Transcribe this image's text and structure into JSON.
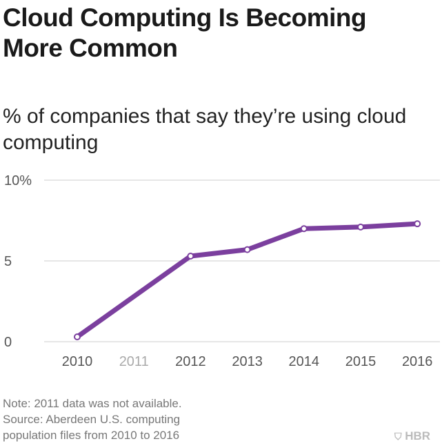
{
  "title": "Cloud Computing Is Becoming More Common",
  "subtitle": "% of companies that say they’re using cloud computing",
  "note": "Note: 2011 data was not available.",
  "source": "Source: Aberdeen U.S. computing population files from 2010 to 2016",
  "logo": "HBR",
  "chart_data": {
    "type": "line",
    "categories": [
      "2010",
      "2011",
      "2012",
      "2013",
      "2014",
      "2015",
      "2016"
    ],
    "series": [
      {
        "values": [
          0.3,
          null,
          5.3,
          5.7,
          7.0,
          7.1,
          7.3
        ],
        "color": "#7b3f9e"
      }
    ],
    "yticks": [
      "0",
      "5",
      "10%"
    ],
    "ytick_values": [
      0,
      5,
      10
    ],
    "ylim": [
      0,
      10
    ],
    "grid": true,
    "muted_categories": [
      "2011"
    ]
  }
}
